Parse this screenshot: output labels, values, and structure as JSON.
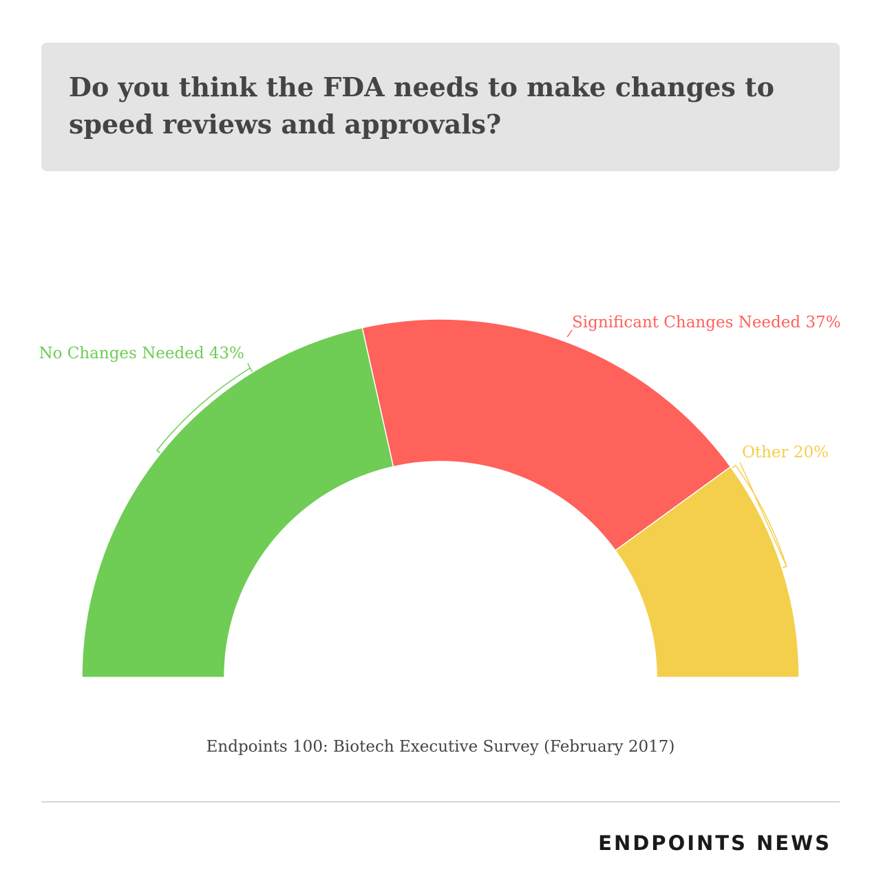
{
  "chart_data": {
    "type": "half-donut",
    "title": "Do you think the FDA needs to make changes to speed reviews and approvals?",
    "categories": [
      "No Changes Needed",
      "Significant Changes Needed",
      "Other"
    ],
    "values": [
      43,
      37,
      20
    ],
    "value_labels": [
      "43%",
      "37%",
      "20%"
    ],
    "colors": [
      "#6fcc55",
      "#ff615b",
      "#f4cf4b"
    ],
    "source": "Endpoints 100: Biotech Executive Survey (February 2017)",
    "brand": "ENDPOINTS NEWS"
  }
}
